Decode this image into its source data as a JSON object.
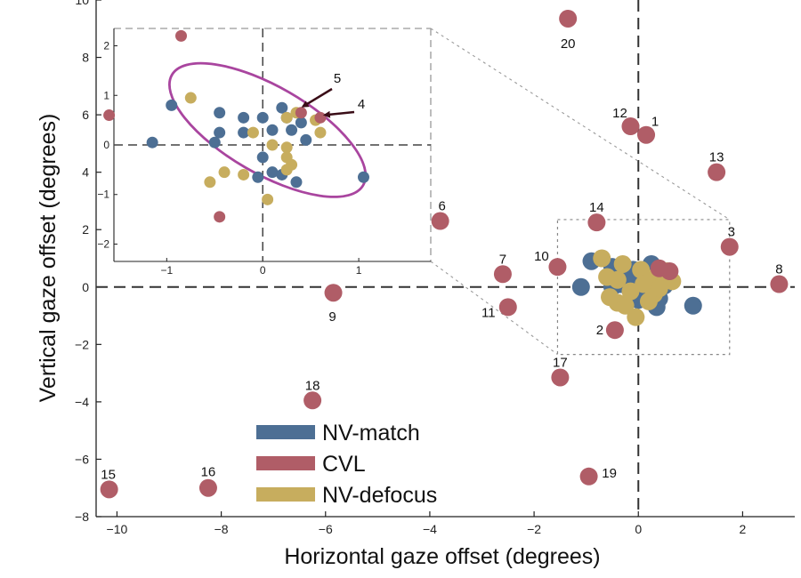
{
  "chart_data": {
    "type": "scatter",
    "xlabel": "Horizontal gaze offset (degrees)",
    "ylabel": "Vertical gaze offset (degrees)",
    "xlim": [
      -10.4,
      3.0
    ],
    "ylim": [
      -8,
      10
    ],
    "xticks": [
      -10,
      -8,
      -6,
      -4,
      -2,
      0,
      2
    ],
    "yticks": [
      -8,
      -6,
      -4,
      -2,
      0,
      2,
      4,
      6,
      8,
      10
    ],
    "grid": false,
    "legend": "bottom-left",
    "colors": {
      "NV-match": "#4d6f94",
      "CVL": "#b05d67",
      "NV-defocus": "#c7ad5e"
    },
    "series": [
      {
        "name": "NV-match",
        "points": [
          [
            -0.9,
            0.9
          ],
          [
            -0.5,
            0.7
          ],
          [
            -0.45,
            0.3
          ],
          [
            -0.1,
            0.6
          ],
          [
            0.25,
            0.8
          ],
          [
            0.35,
            0.4
          ],
          [
            -0.5,
            0.5
          ],
          [
            -1.1,
            0.0
          ],
          [
            -0.5,
            0.0
          ],
          [
            -0.05,
            0.1
          ],
          [
            0.15,
            0.0
          ],
          [
            0.25,
            0.15
          ],
          [
            0.5,
            0.05
          ],
          [
            -0.35,
            0.1
          ],
          [
            0.05,
            -0.2
          ],
          [
            0.4,
            -0.4
          ],
          [
            0.15,
            0.2
          ],
          [
            1.05,
            -0.65
          ],
          [
            0.35,
            -0.7
          ],
          [
            -0.25,
            0.3
          ],
          [
            0.0,
            -0.45
          ],
          [
            -0.1,
            -0.3
          ]
        ]
      },
      {
        "name": "CVL",
        "labels": [
          "1",
          "2",
          "3",
          "4",
          "5",
          "6",
          "7",
          "8",
          "9",
          "10",
          "11",
          "12",
          "13",
          "14",
          "15",
          "16",
          "17",
          "18",
          "19",
          "20"
        ],
        "points": [
          [
            0.15,
            5.3
          ],
          [
            -0.45,
            -1.5
          ],
          [
            1.75,
            1.4
          ],
          [
            0.6,
            0.55
          ],
          [
            0.4,
            0.65
          ],
          [
            -3.8,
            2.3
          ],
          [
            -2.6,
            0.45
          ],
          [
            2.7,
            0.1
          ],
          [
            -5.85,
            -0.2
          ],
          [
            -1.55,
            0.7
          ],
          [
            -2.5,
            -0.7
          ],
          [
            -0.15,
            5.6
          ],
          [
            1.5,
            4.0
          ],
          [
            -0.8,
            2.25
          ],
          [
            -10.15,
            -7.05
          ],
          [
            -8.25,
            -7.0
          ],
          [
            -1.5,
            -3.15
          ],
          [
            -6.25,
            -3.95
          ],
          [
            -0.95,
            -6.6
          ],
          [
            -1.35,
            9.35
          ]
        ]
      },
      {
        "name": "NV-defocus",
        "points": [
          [
            -0.7,
            1.0
          ],
          [
            -0.3,
            0.8
          ],
          [
            0.55,
            0.55
          ],
          [
            0.25,
            0.3
          ],
          [
            0.45,
            0.5
          ],
          [
            0.65,
            0.2
          ],
          [
            -0.4,
            0.25
          ],
          [
            0.05,
            0.6
          ],
          [
            0.3,
            -0.25
          ],
          [
            -0.4,
            -0.55
          ],
          [
            -0.05,
            -1.05
          ],
          [
            -0.25,
            -0.65
          ],
          [
            0.2,
            -0.5
          ],
          [
            -0.55,
            -0.35
          ],
          [
            0.1,
            0.1
          ],
          [
            -0.15,
            -0.15
          ],
          [
            0.4,
            -0.05
          ],
          [
            -0.6,
            0.35
          ]
        ]
      }
    ],
    "inset": {
      "xlim": [
        -1.55,
        1.75
      ],
      "ylim": [
        -2.35,
        2.35
      ],
      "xticks": [
        -1,
        0,
        1
      ],
      "yticks": [
        -2,
        -1,
        0,
        1,
        2
      ],
      "arrow_labels": [
        "5",
        "4"
      ],
      "ellipse": {
        "center": [
          0.05,
          0.3
        ],
        "semi_axes": [
          1.15,
          0.65
        ],
        "rotation_deg": -30
      },
      "series": [
        {
          "name": "NV-match",
          "points": [
            [
              -0.95,
              0.8
            ],
            [
              -0.45,
              0.65
            ],
            [
              -0.2,
              0.55
            ],
            [
              0.0,
              0.55
            ],
            [
              0.2,
              0.75
            ],
            [
              0.25,
              0.55
            ],
            [
              0.4,
              0.45
            ],
            [
              -0.45,
              0.25
            ],
            [
              -0.2,
              0.25
            ],
            [
              0.1,
              0.3
            ],
            [
              0.3,
              0.3
            ],
            [
              -1.15,
              0.05
            ],
            [
              -0.5,
              0.05
            ],
            [
              0.45,
              0.1
            ],
            [
              0.0,
              -0.25
            ],
            [
              0.1,
              -0.55
            ],
            [
              0.2,
              -0.6
            ],
            [
              -0.05,
              -0.65
            ],
            [
              0.35,
              -0.75
            ],
            [
              1.05,
              -0.65
            ]
          ]
        },
        {
          "name": "CVL",
          "points": [
            [
              -0.85,
              2.2
            ],
            [
              -1.6,
              0.6
            ],
            [
              -0.45,
              -1.45
            ],
            [
              0.6,
              0.55
            ],
            [
              0.4,
              0.65
            ]
          ]
        },
        {
          "name": "NV-defocus",
          "points": [
            [
              -0.75,
              0.95
            ],
            [
              0.25,
              0.55
            ],
            [
              0.35,
              0.65
            ],
            [
              0.55,
              0.5
            ],
            [
              0.6,
              0.25
            ],
            [
              -0.1,
              0.25
            ],
            [
              0.1,
              0.0
            ],
            [
              0.25,
              -0.05
            ],
            [
              0.25,
              -0.25
            ],
            [
              0.3,
              -0.4
            ],
            [
              -0.4,
              -0.55
            ],
            [
              -0.2,
              -0.6
            ],
            [
              -0.55,
              -0.75
            ],
            [
              0.25,
              -0.5
            ],
            [
              0.05,
              -1.1
            ]
          ]
        }
      ]
    }
  }
}
